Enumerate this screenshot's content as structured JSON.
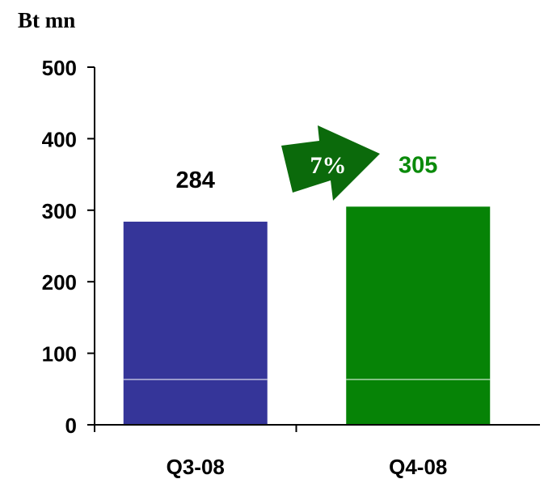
{
  "chart_data": {
    "type": "bar",
    "unit_label": "Bt mn",
    "categories": [
      "Q3-08",
      "Q4-08"
    ],
    "values": [
      284,
      305
    ],
    "data_labels": [
      "284",
      "305"
    ],
    "bar_colors": [
      "#353599",
      "#068306"
    ],
    "label_colors": [
      "#000000",
      "#0a8a0a"
    ],
    "ylim": [
      0,
      500
    ],
    "yticks": [
      0,
      100,
      200,
      300,
      400,
      500
    ],
    "ytick_labels": [
      "0",
      "100",
      "200",
      "300",
      "400",
      "500"
    ],
    "grid": false,
    "annotation": {
      "text": "7%",
      "shape": "arrow-right",
      "color": "#0b6a0b"
    }
  }
}
